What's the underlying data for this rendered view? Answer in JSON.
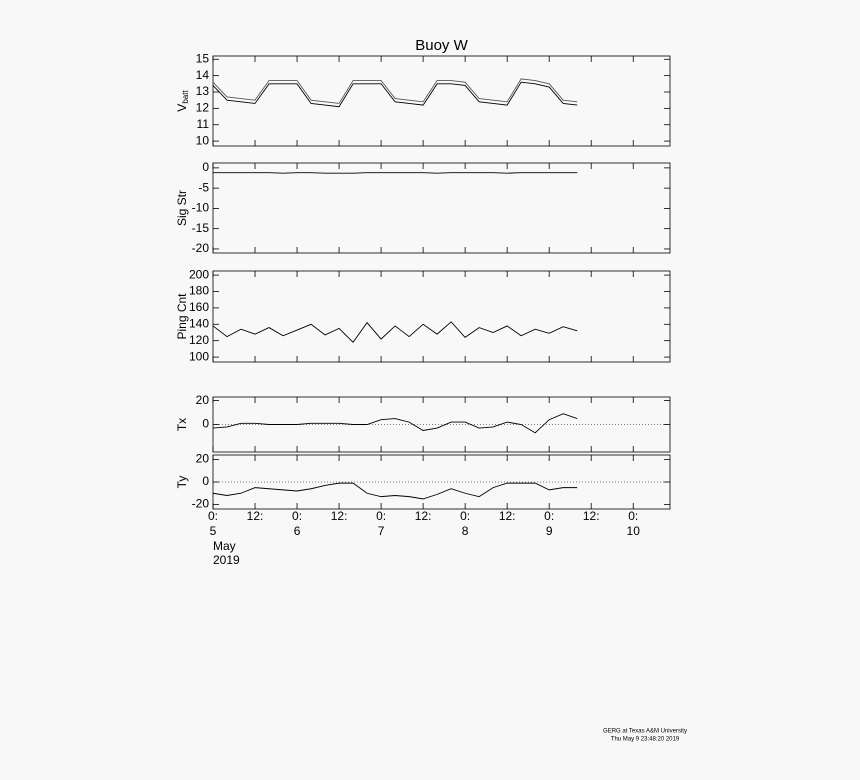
{
  "chart_data": [
    {
      "type": "line",
      "title": "Buoy W",
      "ylabel": "V",
      "ylabel_sub": "batt",
      "x": [
        0,
        4,
        8,
        12,
        16,
        20,
        24,
        28,
        32,
        36,
        40,
        44,
        48,
        52,
        56,
        60,
        64,
        68,
        72,
        76,
        80,
        84,
        88,
        92,
        96,
        100,
        104
      ],
      "series": [
        {
          "color": "#000000",
          "values": [
            13.4,
            12.5,
            12.4,
            12.3,
            13.5,
            13.5,
            13.5,
            12.3,
            12.2,
            12.1,
            13.5,
            13.5,
            13.5,
            12.4,
            12.3,
            12.2,
            13.5,
            13.5,
            13.4,
            12.4,
            12.3,
            12.2,
            13.6,
            13.5,
            13.3,
            12.3,
            12.2
          ]
        },
        {
          "color": "#555555",
          "values": [
            13.6,
            12.7,
            12.6,
            12.5,
            13.7,
            13.7,
            13.7,
            12.5,
            12.4,
            12.3,
            13.7,
            13.7,
            13.7,
            12.6,
            12.5,
            12.4,
            13.7,
            13.7,
            13.6,
            12.6,
            12.5,
            12.4,
            13.8,
            13.7,
            13.5,
            12.5,
            12.4
          ]
        }
      ],
      "xlim": [
        0,
        130.5
      ],
      "xticks": [
        0,
        12,
        24,
        36,
        48,
        60,
        72,
        84,
        96,
        108,
        120
      ],
      "ylim": [
        9.7,
        15.2
      ],
      "yticks": [
        10,
        11,
        12,
        13,
        14,
        15
      ]
    },
    {
      "type": "line",
      "ylabel": "Sig Str",
      "x": [
        0,
        4,
        8,
        12,
        16,
        20,
        24,
        28,
        32,
        36,
        40,
        44,
        48,
        52,
        56,
        60,
        64,
        68,
        72,
        76,
        80,
        84,
        88,
        92,
        96,
        100,
        104
      ],
      "series": [
        {
          "color": "#000000",
          "values": [
            -1.2,
            -1.2,
            -1.2,
            -1.2,
            -1.2,
            -1.3,
            -1.2,
            -1.2,
            -1.3,
            -1.3,
            -1.3,
            -1.2,
            -1.2,
            -1.2,
            -1.2,
            -1.2,
            -1.3,
            -1.2,
            -1.2,
            -1.2,
            -1.2,
            -1.3,
            -1.2,
            -1.2,
            -1.2,
            -1.2,
            -1.2
          ]
        }
      ],
      "xlim": [
        0,
        130.5
      ],
      "xticks": [
        0,
        12,
        24,
        36,
        48,
        60,
        72,
        84,
        96,
        108,
        120
      ],
      "ylim": [
        -21,
        1.2
      ],
      "yticks": [
        0,
        -5,
        -10,
        -15,
        -20
      ]
    },
    {
      "type": "line",
      "ylabel": "Ping Cnt",
      "x": [
        0,
        4,
        8,
        12,
        16,
        20,
        24,
        28,
        32,
        36,
        40,
        44,
        48,
        52,
        56,
        60,
        64,
        68,
        72,
        76,
        80,
        84,
        88,
        92,
        96,
        100,
        104
      ],
      "series": [
        {
          "color": "#000000",
          "values": [
            138,
            125,
            134,
            128,
            136,
            126,
            133,
            140,
            127,
            135,
            118,
            142,
            122,
            138,
            125,
            140,
            128,
            143,
            124,
            136,
            130,
            138,
            126,
            134,
            129,
            137,
            132
          ]
        }
      ],
      "xlim": [
        0,
        130.5
      ],
      "xticks": [
        0,
        12,
        24,
        36,
        48,
        60,
        72,
        84,
        96,
        108,
        120
      ],
      "ylim": [
        94,
        205
      ],
      "yticks": [
        100,
        120,
        140,
        160,
        180,
        200
      ]
    },
    {
      "type": "line",
      "ylabel": "Tx",
      "hline": 0,
      "x": [
        0,
        4,
        8,
        12,
        16,
        20,
        24,
        28,
        32,
        36,
        40,
        44,
        48,
        52,
        56,
        60,
        64,
        68,
        72,
        76,
        80,
        84,
        88,
        92,
        96,
        100,
        104
      ],
      "series": [
        {
          "color": "#000000",
          "values": [
            -3,
            -2,
            1,
            1,
            0,
            0,
            0,
            1,
            1,
            1,
            0,
            0,
            4,
            5,
            2,
            -5,
            -3,
            2,
            2,
            -3,
            -2,
            2,
            0,
            -7,
            4,
            9,
            5
          ]
        }
      ],
      "xlim": [
        0,
        130.5
      ],
      "xticks": [
        0,
        12,
        24,
        36,
        48,
        60,
        72,
        84,
        96,
        108,
        120
      ],
      "ylim": [
        -23,
        23
      ],
      "yticks": [
        20,
        0
      ]
    },
    {
      "type": "line",
      "ylabel": "Ty",
      "hline": 0,
      "x": [
        0,
        4,
        8,
        12,
        16,
        20,
        24,
        28,
        32,
        36,
        40,
        44,
        48,
        52,
        56,
        60,
        64,
        68,
        72,
        76,
        80,
        84,
        88,
        92,
        96,
        100,
        104
      ],
      "series": [
        {
          "color": "#000000",
          "values": [
            -10,
            -12,
            -10,
            -5,
            -6,
            -7,
            -8,
            -6,
            -3,
            -1,
            -1,
            -10,
            -13,
            -12,
            -13,
            -15,
            -11,
            -6,
            -10,
            -13,
            -5,
            -1,
            -1,
            -1,
            -7,
            -5,
            -5
          ]
        }
      ],
      "xlim": [
        0,
        130.5
      ],
      "xticks": [
        {
          "value": 0,
          "label": "0:",
          "day": "5"
        },
        {
          "value": 12,
          "label": "12:"
        },
        {
          "value": 24,
          "label": "0:",
          "day": "6"
        },
        {
          "value": 36,
          "label": "12:"
        },
        {
          "value": 48,
          "label": "0:",
          "day": "7"
        },
        {
          "value": 60,
          "label": "12:"
        },
        {
          "value": 72,
          "label": "0:",
          "day": "8"
        },
        {
          "value": 84,
          "label": "12:"
        },
        {
          "value": 96,
          "label": "0:",
          "day": "9"
        },
        {
          "value": 108,
          "label": "12:"
        },
        {
          "value": 120,
          "label": "0:",
          "day": "10"
        }
      ],
      "month": "May",
      "year": "2019",
      "ylim": [
        -24,
        24
      ],
      "yticks": [
        20,
        0,
        -20
      ]
    }
  ],
  "footer": [
    "GERG at Texas A&M University",
    "Thu May  9 23:48:20 2019"
  ]
}
